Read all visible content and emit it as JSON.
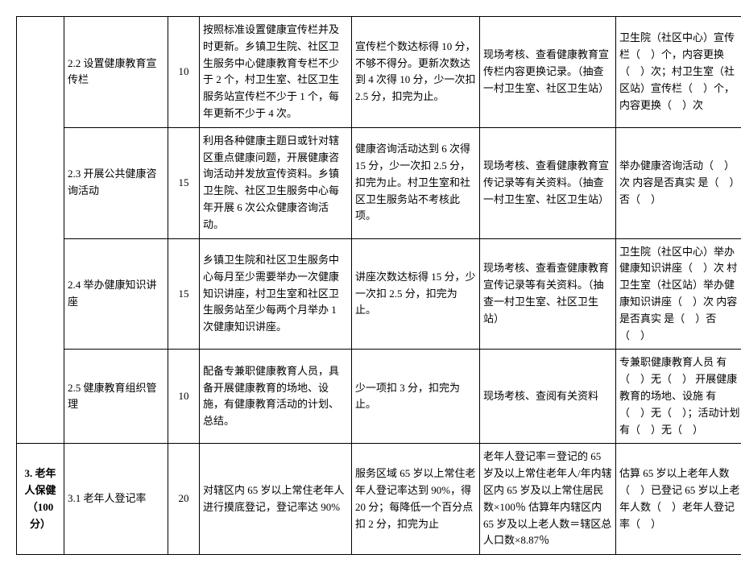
{
  "table": {
    "rows": [
      {
        "col1": "",
        "col2": "2.2 设置健康教育宣传栏",
        "col3": "10",
        "col4": "按照标准设置健康宣传栏并及时更新。乡镇卫生院、社区卫生服务中心健康教育专栏不少于 2 个，村卫生室、社区卫生服务站宣传栏不少于 1 个，每年更新不少于 4 次。",
        "col5": "宣传栏个数达标得 10 分，不够不得分。更新次数达到 4 次得 10 分，少一次扣 2.5 分，扣完为止。",
        "col6": "现场考核、查看健康教育宣传栏内容更换记录。（抽查一村卫生室、社区卫生站）",
        "col7": "卫生院（社区中心）宣传栏（　）个，内容更换（　）次；村卫生室（社区站）宣传栏（　）个，内容更换（　）次"
      },
      {
        "col1": "",
        "col2": "2.3 开展公共健康咨询活动",
        "col3": "15",
        "col4": "利用各种健康主题日或针对辖区重点健康问题，开展健康咨询活动并发放宣传资料。乡镇卫生院、社区卫生服务中心每年开展 6 次公众健康咨询活动。",
        "col5": "健康咨询活动达到 6 次得 15 分，少一次扣 2.5 分，扣完为止。村卫生室和社区卫生服务站不考核此项。",
        "col6": "现场考核、查看健康教育宣传记录等有关资料。（抽查一村卫生室、社区卫生站）",
        "col7": "举办健康咨询活动（　）次\n内容是否真实 是（　）否（　）"
      },
      {
        "col1": "",
        "col2": "2.4 举办健康知识讲座",
        "col3": "15",
        "col4": "乡镇卫生院和社区卫生服务中心每月至少需要举办一次健康知识讲座，村卫生室和社区卫生服务站至少每两个月举办 1 次健康知识讲座。",
        "col5": "讲座次数达标得 15 分，少一次扣 2.5 分，扣完为止。",
        "col6": "现场考核、查看查健康教育宣传记录等有关资料。（抽查一村卫生室、社区卫生站）",
        "col7": "卫生院（社区中心）举办健康知识讲座（　）次 村卫生室（社区站）举办健康知识讲座（　）次\n内容是否真实 是（　）否（　）"
      },
      {
        "col1": "",
        "col2": "2.5 健康教育组织管理",
        "col3": "10",
        "col4": "配备专兼职健康教育人员，具备开展健康教育的场地、设施，有健康教育活动的计划、总结。",
        "col5": "少一项扣 3 分，扣完为止。",
        "col6": "现场考核、查阅有关资料",
        "col7": "专兼职健康教育人员 有（　）无（　）\n开展健康教育的场地、设施 有（　）无（　）；活动计划 有（　）无（　）"
      },
      {
        "col1": "3. 老年人保健（100分）",
        "col2": "3.1 老年人登记率",
        "col3": "20",
        "col4": "对辖区内 65 岁以上常住老年人进行摸底登记，登记率达 90%",
        "col5": "服务区域 65 岁以上常住老年人登记率达到 90%，得 20 分；每降低一个百分点扣 2 分，扣完为止",
        "col6": "老年人登记率＝登记的 65 岁及以上常住老年人/年内辖区内 65 岁及以上常住居民数×100％\n估算年内辖区内 65 岁及以上老人数＝辖区总人口数×8.87％",
        "col7": "估算 65 岁以上老年人数（　）已登记 65 岁以上老年人数（　）老年人登记率（　）"
      }
    ]
  }
}
